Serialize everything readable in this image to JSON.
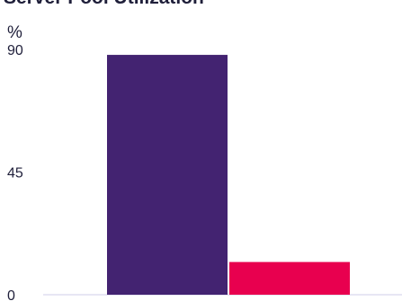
{
  "chart_data": {
    "type": "bar",
    "title": "Server Pool Utilization",
    "ylabel": "%",
    "xlabel": "",
    "ylim": [
      0,
      90
    ],
    "yticks": [
      "0",
      "45",
      "90"
    ],
    "grid": false,
    "legend": "none",
    "categories": [
      "",
      ""
    ],
    "values": [
      88,
      12
    ],
    "colors": [
      "#432371",
      "#e8004f"
    ]
  }
}
